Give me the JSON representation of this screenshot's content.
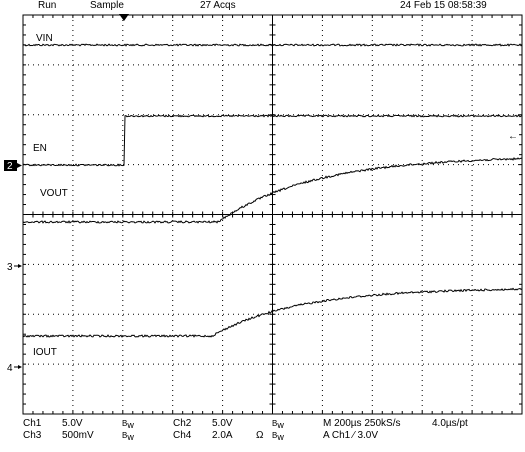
{
  "status_bar": {
    "run_state": "Run",
    "acq_mode": "Sample",
    "acq_count": "27 Acqs",
    "timestamp": "24 Feb 15 08:58:39"
  },
  "traces": {
    "vin_label": "VIN",
    "en_label": "EN",
    "vout_label": "VOUT",
    "iout_label": "IOUT"
  },
  "markers": {
    "ch2": "2",
    "ch3": "3",
    "ch4": "4",
    "arrow_left": "←"
  },
  "footer": {
    "ch1_name": "Ch1",
    "ch1_scale": "5.0V",
    "ch2_name": "Ch2",
    "ch2_scale": "5.0V",
    "ch3_name": "Ch3",
    "ch3_scale": "500mV",
    "ch4_name": "Ch4",
    "ch4_scale": "2.0A",
    "ch4_unit": "Ω",
    "timebase": "M 200µs 250kS/s",
    "sample_interval": "4.0µs/pt",
    "trigger": "A  Ch1  ⁄  3.0V"
  },
  "colors": {
    "grid": "#000000",
    "trace": "#000000",
    "background": "#ffffff"
  }
}
